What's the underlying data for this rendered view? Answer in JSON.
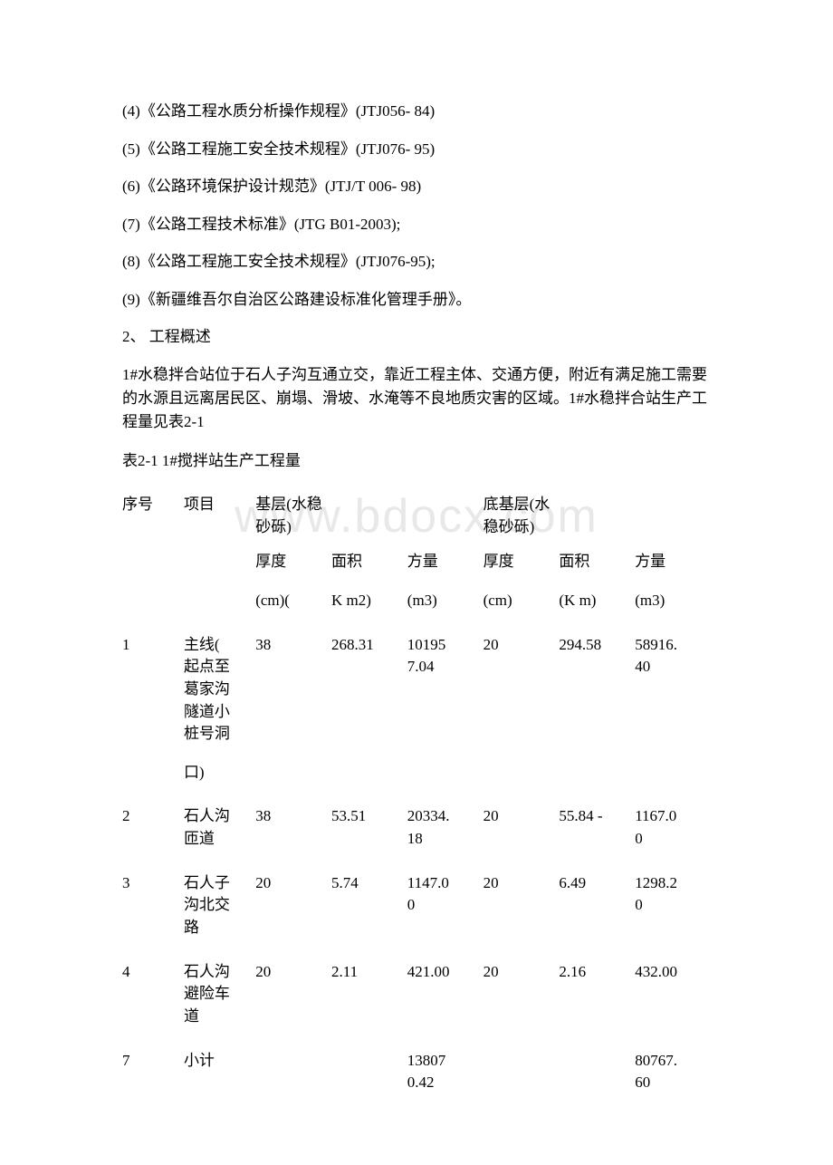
{
  "watermark": "www.bdocx.com",
  "lines": [
    "(4)《公路工程水质分析操作规程》(JTJ056- 84)",
    "(5)《公路工程施工安全技术规程》(JTJ076- 95)",
    "(6)《公路环境保护设计规范》(JTJ/T 006- 98)",
    "(7)《公路工程技术标准》(JTG B01-2003);",
    "(8)《公路工程施工安全技术规程》(JTJ076-95);",
    "(9)《新疆维吾尔自治区公路建设标准化管理手册》。"
  ],
  "section_title": "2、 工程概述",
  "paragraph": "1#水稳拌合站位于石人子沟互通立交，靠近工程主体、交通方便，附近有满足施工需要的水源且远离居民区、崩塌、滑坡、水淹等不良地质灾害的区域。1#水稳拌合站生产工程量见表2-1",
  "table_caption": "表2-1 1#搅拌站生产工程量",
  "table": {
    "header1": {
      "seq": "序号",
      "item": "项目",
      "group_a": "基层(水稳砂砾)",
      "group_b": "底基层(水稳砂砾)"
    },
    "header2": {
      "a1": "厚度",
      "a2": "面积",
      "a3": "方量",
      "b1": "厚度",
      "b2": "面积",
      "b3": "方量"
    },
    "header3": {
      "a1": "(cm)(",
      "a2": "K m2)",
      "a3": "(m3)",
      "b1": "(cm)",
      "b2": "(K m)",
      "b3": "(m3)"
    },
    "rows": [
      {
        "seq": "1",
        "item_l1": "主线(",
        "item_l2": "起点至",
        "item_l3": "葛家沟",
        "item_l4": "隧道小",
        "item_l5": "桩号洞",
        "item_l6": "口)",
        "a1": "38",
        "a2": "268.31",
        "a3_l1": "10195",
        "a3_l2": "7.04",
        "b1": "20",
        "b2": "294.58",
        "b3_l1": "58916.",
        "b3_l2": "40"
      },
      {
        "seq": "2",
        "item_l1": "石人沟",
        "item_l2": "匝道",
        "a1": "38",
        "a2": "53.51",
        "a3_l1": "20334.",
        "a3_l2": "18",
        "b1": "20",
        "b2": "55.84 -",
        "b3_l1": "1167.0",
        "b3_l2": "0"
      },
      {
        "seq": "3",
        "item_l1": "石人子",
        "item_l2": "沟北交",
        "item_l3": "路",
        "a1": "20",
        "a2": "5.74",
        "a3_l1": "1147.0",
        "a3_l2": "0",
        "b1": "20",
        "b2": "6.49",
        "b3_l1": "1298.2",
        "b3_l2": "0"
      },
      {
        "seq": "4",
        "item_l1": "石人沟",
        "item_l2": "避险车",
        "item_l3": "道",
        "a1": "20",
        "a2": "2.11",
        "a3_l1": "421.00",
        "a3_l2": "",
        "b1": "20",
        "b2": "2.16",
        "b3_l1": "432.00",
        "b3_l2": ""
      },
      {
        "seq": "7",
        "item_l1": "小计",
        "a1": "",
        "a2": "",
        "a3_l1": "13807",
        "a3_l2": "0.42",
        "b1": "",
        "b2": "",
        "b3_l1": "80767.",
        "b3_l2": "60"
      }
    ]
  }
}
